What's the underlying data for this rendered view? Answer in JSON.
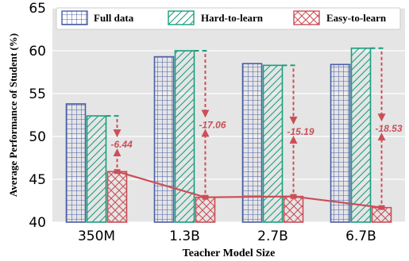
{
  "chart_data": {
    "type": "bar",
    "xlabel": "Teacher Model Size",
    "ylabel": "Average Performance of Student (%)",
    "categories": [
      "350M",
      "1.3B",
      "2.7B",
      "6.7B"
    ],
    "ylim": [
      40,
      65
    ],
    "yticks": [
      40,
      45,
      50,
      55,
      60,
      65
    ],
    "grid": true,
    "legend_position": "top",
    "series": [
      {
        "name": "Full data",
        "values": [
          53.8,
          59.3,
          58.5,
          58.4
        ],
        "color": "#4a5fa6",
        "pattern": "grid"
      },
      {
        "name": "Hard-to-learn",
        "values": [
          52.4,
          60.0,
          58.3,
          60.3
        ],
        "color": "#1a9e7d",
        "pattern": "diagonal"
      },
      {
        "name": "Easy-to-learn",
        "values": [
          45.9,
          42.9,
          43.0,
          41.7
        ],
        "color": "#cc4e57",
        "pattern": "crosshatch"
      }
    ],
    "gaps": [
      "-6.44",
      "-17.06",
      "-15.19",
      "-18.53"
    ]
  }
}
